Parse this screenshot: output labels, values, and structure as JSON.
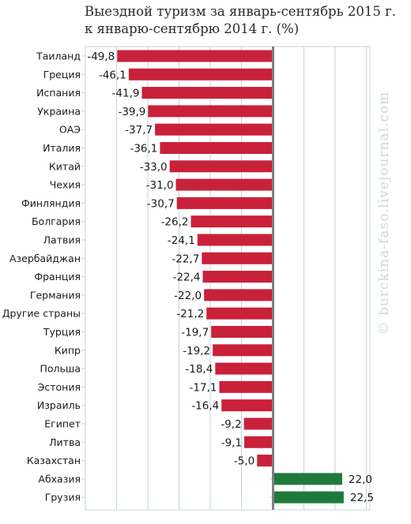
{
  "watermark": "© burckina-faso.livejournal.com",
  "colors": {
    "negative_bar": "#c9213a",
    "positive_bar": "#1f7a3c",
    "grid": "#c4d4db",
    "zero_line": "#808080",
    "label_text": "#1a1a1a"
  },
  "chart_data": {
    "type": "bar",
    "orientation": "horizontal",
    "title": "Выездной туризм за январь-сентябрь 2015 г. к январю-сентябрю 2014 г. (%)",
    "title_lines": [
      "Выездной туризм за январь-сентябрь 2015 г.",
      "к январю-сентябрю 2014 г. (%)"
    ],
    "categories": [
      "Таиланд",
      "Греция",
      "Испания",
      "Украина",
      "ОАЭ",
      "Италия",
      "Китай",
      "Чехия",
      "Финляндия",
      "Болгария",
      "Латвия",
      "Азербайджан",
      "Франция",
      "Германия",
      "Другие страны",
      "Турция",
      "Кипр",
      "Польша",
      "Эстония",
      "Израиль",
      "Египет",
      "Литва",
      "Казахстан",
      "Абхазия",
      "Грузия"
    ],
    "values": [
      -49.8,
      -46.1,
      -41.9,
      -39.9,
      -37.7,
      -36.1,
      -33.0,
      -31.0,
      -30.7,
      -26.2,
      -24.1,
      -22.7,
      -22.4,
      -22.0,
      -21.2,
      -19.7,
      -19.2,
      -18.4,
      -17.1,
      -16.4,
      -9.2,
      -9.1,
      -5.0,
      22.0,
      22.5
    ],
    "value_labels": [
      "-49,8",
      "-46,1",
      "-41,9",
      "-39,9",
      "-37,7",
      "-36,1",
      "-33,0",
      "-31,0",
      "-30,7",
      "-26,2",
      "-24,1",
      "-22,7",
      "-22,4",
      "-22,0",
      "-21,2",
      "-19,7",
      "-19,2",
      "-18,4",
      "-17,1",
      "-16,4",
      "-9,2",
      "-9,1",
      "-5,0",
      "22,0",
      "22,5"
    ],
    "xlim": [
      -50,
      30
    ],
    "grid": true,
    "legend": "none"
  }
}
